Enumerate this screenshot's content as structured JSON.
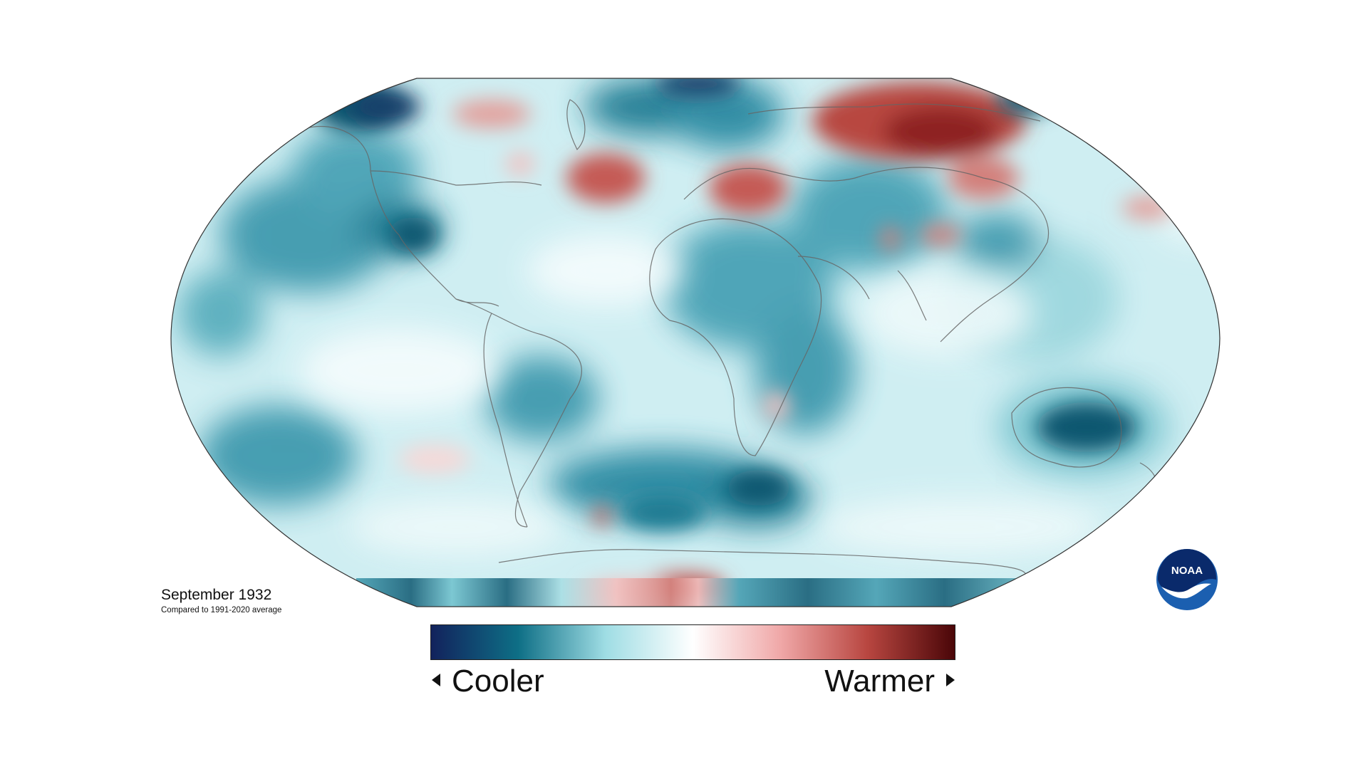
{
  "caption": {
    "title": "September 1932",
    "subtitle": "Compared to 1991-2020 average"
  },
  "legend": {
    "left_label": "Cooler",
    "right_label": "Warmer",
    "gradient_colors": [
      "#12225c",
      "#0e6f86",
      "#9fdde4",
      "#ffffff",
      "#f0a8a8",
      "#b84640",
      "#4a0608"
    ]
  },
  "logo": {
    "text": "NOAA",
    "icon": "noaa-logo-icon",
    "colors": [
      "#1b5fb0",
      "#0a2a6b",
      "#ffffff"
    ]
  },
  "map": {
    "projection": "robinson",
    "ocean_base_color": "#d4f0f3",
    "anomaly_palette": {
      "strong_cool": "#0d5770",
      "cool": "#3f9aae",
      "light_cool": "#a6dde3",
      "neutral": "#ffffff",
      "light_warm": "#f2c0bf",
      "warm": "#d37f7a",
      "strong_warm": "#9c302c"
    }
  }
}
